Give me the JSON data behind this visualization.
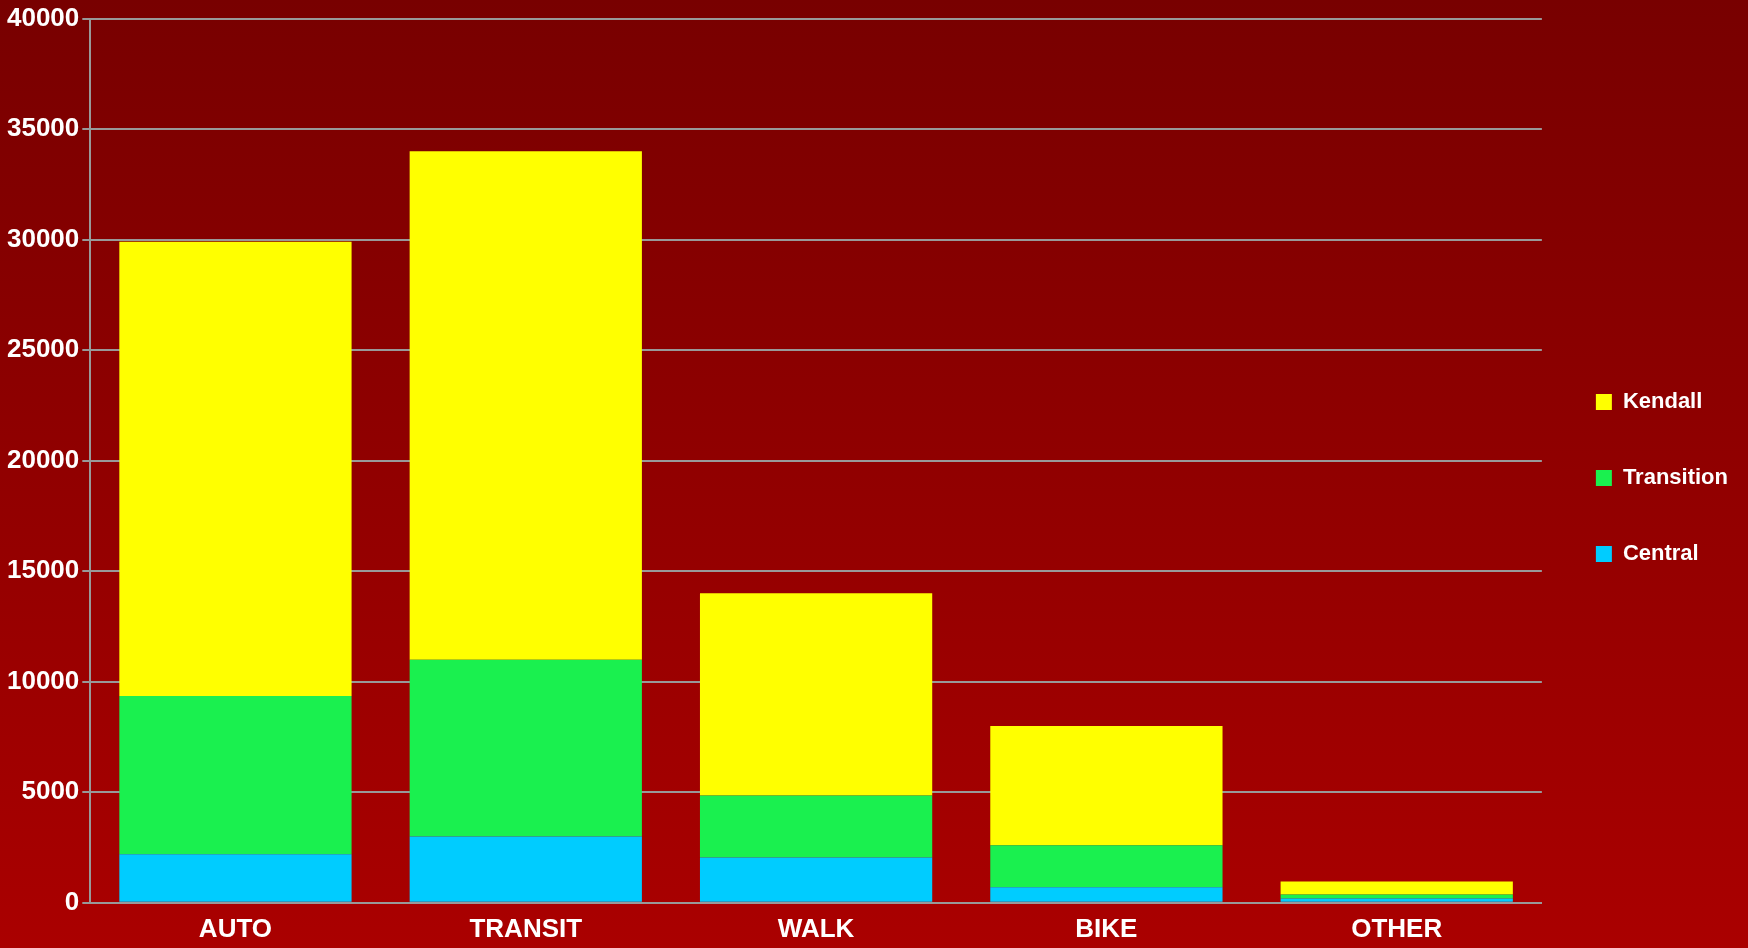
{
  "chart_data": {
    "type": "bar",
    "stacked": true,
    "categories": [
      "AUTO",
      "TRANSIT",
      "WALK",
      "BIKE",
      "OTHER"
    ],
    "series": [
      {
        "name": "Central",
        "color": "#00ccff",
        "values": [
          2200,
          3000,
          2050,
          700,
          200
        ]
      },
      {
        "name": "Transition",
        "color": "#1af04f",
        "values": [
          7150,
          8000,
          2800,
          1900,
          170
        ]
      },
      {
        "name": "Kendall",
        "color": "#ffff00",
        "values": [
          20550,
          23000,
          9150,
          5400,
          590
        ]
      }
    ],
    "ylim": [
      0,
      40000
    ],
    "yticks": [
      0,
      5000,
      10000,
      15000,
      20000,
      25000,
      30000,
      35000,
      40000
    ],
    "grid": "y",
    "legend": "right"
  }
}
